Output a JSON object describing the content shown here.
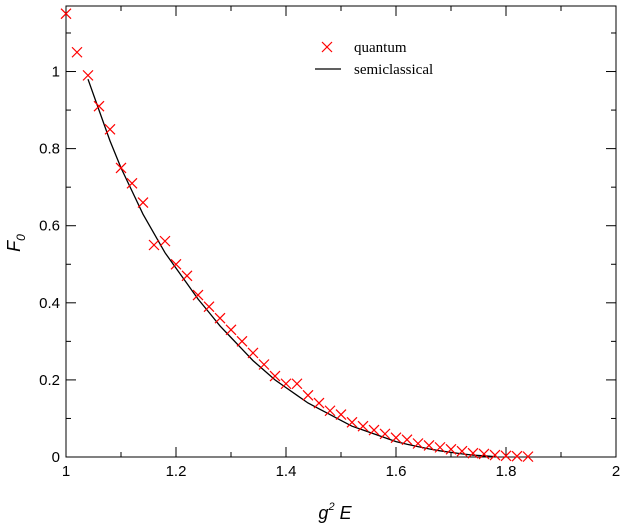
{
  "chart_data": {
    "type": "scatter",
    "xlabel": {
      "base": "g",
      "sup": "2",
      "rest": " E"
    },
    "ylabel": {
      "base": "F",
      "sub": "0"
    },
    "xlim": [
      1,
      2
    ],
    "ylim": [
      0,
      1.17
    ],
    "x_ticks": [
      1,
      1.2,
      1.4,
      1.6,
      1.8,
      2
    ],
    "x_tick_labels": [
      "1",
      "1.2",
      "1.4",
      "1.6",
      "1.8",
      "2"
    ],
    "y_ticks": [
      0,
      0.2,
      0.4,
      0.6,
      0.8,
      1
    ],
    "y_tick_labels": [
      "0",
      "0.2",
      "0.4",
      "0.6",
      "0.8",
      "1"
    ],
    "grid": false,
    "legend_position": "top-right",
    "colors": {
      "quantum": "#ff0000",
      "semiclassical": "#000000"
    },
    "series": [
      {
        "name": "quantum",
        "marker": "x",
        "x": [
          1.0,
          1.02,
          1.04,
          1.06,
          1.08,
          1.1,
          1.12,
          1.14,
          1.16,
          1.18,
          1.2,
          1.22,
          1.24,
          1.26,
          1.28,
          1.3,
          1.32,
          1.34,
          1.36,
          1.38,
          1.4,
          1.42,
          1.44,
          1.46,
          1.48,
          1.5,
          1.52,
          1.54,
          1.56,
          1.58,
          1.6,
          1.62,
          1.64,
          1.66,
          1.68,
          1.7,
          1.72,
          1.74,
          1.76,
          1.78,
          1.8,
          1.82,
          1.84
        ],
        "y": [
          1.15,
          1.05,
          0.99,
          0.91,
          0.85,
          0.75,
          0.71,
          0.66,
          0.55,
          0.56,
          0.5,
          0.47,
          0.42,
          0.39,
          0.36,
          0.33,
          0.3,
          0.27,
          0.24,
          0.21,
          0.19,
          0.19,
          0.16,
          0.14,
          0.12,
          0.11,
          0.09,
          0.08,
          0.07,
          0.06,
          0.05,
          0.045,
          0.035,
          0.03,
          0.025,
          0.02,
          0.015,
          0.01,
          0.008,
          0.005,
          0.003,
          0.002,
          0.001
        ]
      },
      {
        "name": "semiclassical",
        "marker": "line",
        "x": [
          1.04,
          1.06,
          1.08,
          1.1,
          1.12,
          1.14,
          1.16,
          1.18,
          1.2,
          1.22,
          1.24,
          1.26,
          1.28,
          1.3,
          1.32,
          1.34,
          1.36,
          1.38,
          1.4,
          1.42,
          1.44,
          1.46,
          1.48,
          1.5,
          1.52,
          1.54,
          1.56,
          1.58,
          1.6,
          1.62,
          1.64,
          1.66,
          1.68,
          1.7,
          1.72,
          1.74,
          1.76,
          1.78
        ],
        "y": [
          0.98,
          0.9,
          0.82,
          0.75,
          0.69,
          0.63,
          0.58,
          0.53,
          0.49,
          0.45,
          0.41,
          0.375,
          0.34,
          0.31,
          0.28,
          0.25,
          0.225,
          0.2,
          0.18,
          0.16,
          0.14,
          0.125,
          0.11,
          0.095,
          0.08,
          0.07,
          0.06,
          0.05,
          0.04,
          0.033,
          0.027,
          0.021,
          0.016,
          0.012,
          0.008,
          0.005,
          0.003,
          0.001
        ]
      }
    ]
  }
}
